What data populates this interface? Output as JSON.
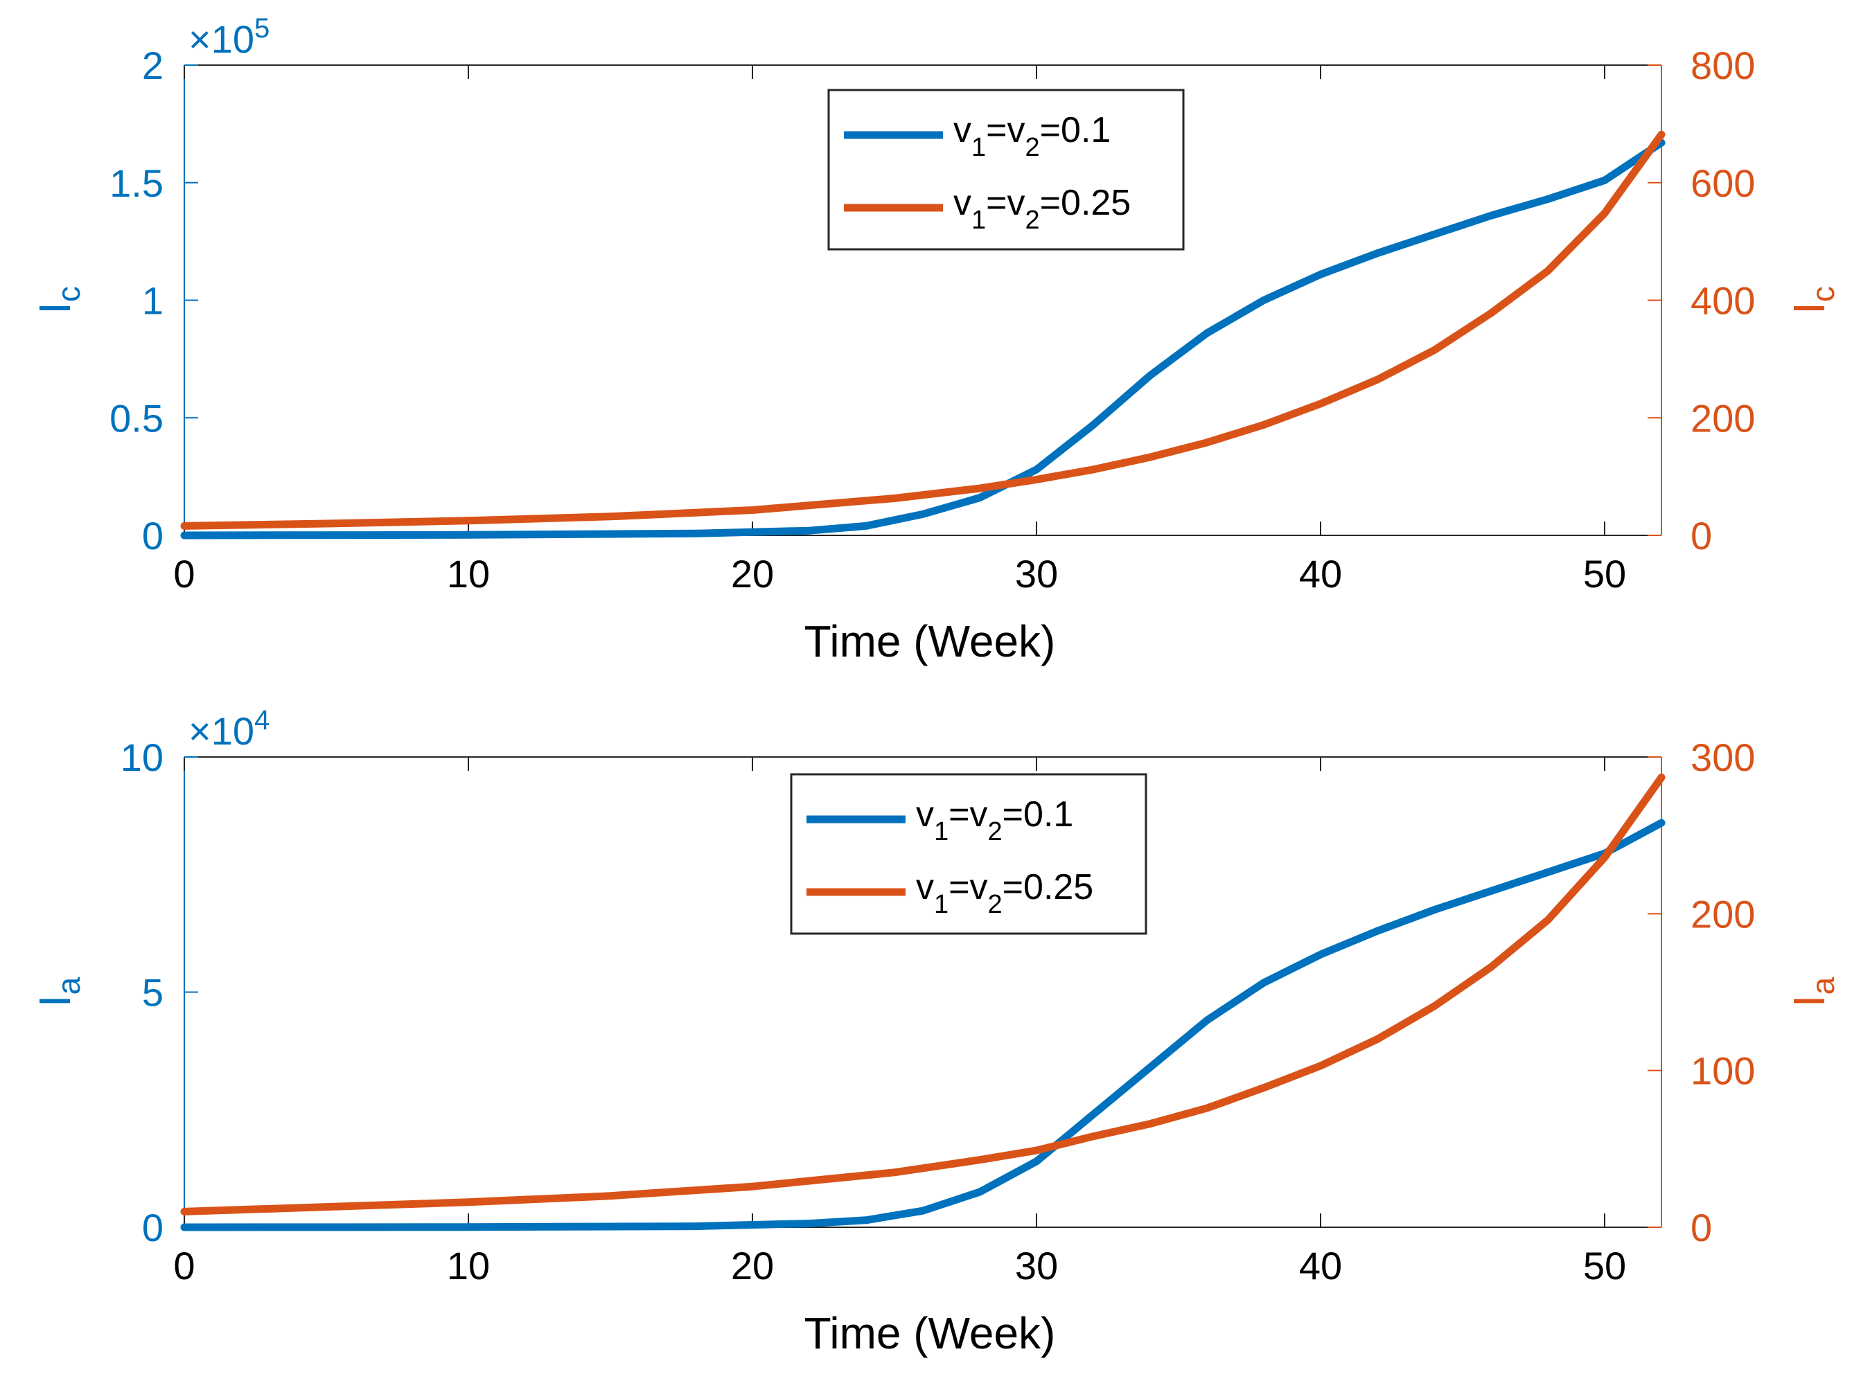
{
  "colors": {
    "left_axis": "#0072BD",
    "right_axis": "#D95319",
    "series_1": "#0072BD",
    "series_2": "#D95319",
    "axis_black": "#262626",
    "legend_border": "#262626",
    "background": "#ffffff"
  },
  "chart_data": [
    {
      "type": "line",
      "xlabel": "Time (Week)",
      "ylabel_left": {
        "base": "I",
        "sub": "c"
      },
      "ylabel_right": {
        "base": "I",
        "sub": "c"
      },
      "left_multiplier": {
        "times": "×",
        "base": "10",
        "exp": "5"
      },
      "xlim": [
        0,
        52
      ],
      "ylim_left": [
        0,
        200000
      ],
      "ylim_right": [
        0,
        800
      ],
      "xticks": [
        0,
        10,
        20,
        30,
        40,
        50
      ],
      "xtick_labels": [
        "0",
        "10",
        "20",
        "30",
        "40",
        "50"
      ],
      "yticks_left": [
        0,
        50000,
        100000,
        150000,
        200000
      ],
      "ytick_labels_left": [
        "0",
        "0.5",
        "1",
        "1.5",
        "2"
      ],
      "yticks_right": [
        0,
        200,
        400,
        600,
        800
      ],
      "ytick_labels_right": [
        "0",
        "200",
        "400",
        "600",
        "800"
      ],
      "grid": false,
      "legend_placement": "top-center",
      "legend": [
        {
          "v1": "v",
          "s1": "1",
          "eq1": "=",
          "v2": "v",
          "s2": "2",
          "rest": "=0.1"
        },
        {
          "v1": "v",
          "s1": "1",
          "eq1": "=",
          "v2": "v",
          "s2": "2",
          "rest": "=0.25"
        }
      ],
      "series": [
        {
          "axis": "left",
          "x": [
            0,
            10,
            18,
            22,
            24,
            26,
            28,
            30,
            32,
            34,
            36,
            38,
            40,
            42,
            44,
            46,
            48,
            50,
            52
          ],
          "y": [
            0,
            200,
            800,
            2000,
            4000,
            9000,
            16000,
            28000,
            47000,
            68000,
            86000,
            100000,
            111000,
            120000,
            128000,
            136000,
            143000,
            151000,
            167000
          ]
        },
        {
          "axis": "right",
          "x": [
            0,
            5,
            10,
            15,
            20,
            25,
            28,
            30,
            32,
            34,
            36,
            38,
            40,
            42,
            44,
            46,
            48,
            50,
            52
          ],
          "y": [
            16,
            20,
            25,
            32,
            43,
            63,
            80,
            95,
            112,
            133,
            158,
            188,
            224,
            265,
            315,
            378,
            450,
            548,
            682
          ]
        }
      ]
    },
    {
      "type": "line",
      "xlabel": "Time (Week)",
      "ylabel_left": {
        "base": "I",
        "sub": "a"
      },
      "ylabel_right": {
        "base": "I",
        "sub": "a"
      },
      "left_multiplier": {
        "times": "×",
        "base": "10",
        "exp": "4"
      },
      "xlim": [
        0,
        52
      ],
      "ylim_left": [
        0,
        100000
      ],
      "ylim_right": [
        0,
        300
      ],
      "xticks": [
        0,
        10,
        20,
        30,
        40,
        50
      ],
      "xtick_labels": [
        "0",
        "10",
        "20",
        "30",
        "40",
        "50"
      ],
      "yticks_left": [
        0,
        50000,
        100000
      ],
      "ytick_labels_left": [
        "0",
        "5",
        "10"
      ],
      "yticks_right": [
        0,
        100,
        200,
        300
      ],
      "ytick_labels_right": [
        "0",
        "100",
        "200",
        "300"
      ],
      "grid": false,
      "legend_placement": "top-center",
      "legend": [
        {
          "v1": "v",
          "s1": "1",
          "eq1": "=",
          "v2": "v",
          "s2": "2",
          "rest": "=0.1"
        },
        {
          "v1": "v",
          "s1": "1",
          "eq1": "=",
          "v2": "v",
          "s2": "2",
          "rest": "=0.25"
        }
      ],
      "series": [
        {
          "axis": "left",
          "x": [
            0,
            10,
            18,
            22,
            24,
            26,
            28,
            30,
            32,
            34,
            36,
            38,
            40,
            42,
            44,
            46,
            48,
            50,
            52
          ],
          "y": [
            0,
            50,
            200,
            800,
            1500,
            3500,
            7500,
            14000,
            24000,
            34000,
            44000,
            52000,
            58000,
            63000,
            67500,
            71500,
            75500,
            79500,
            86000
          ]
        },
        {
          "axis": "right",
          "x": [
            0,
            5,
            10,
            15,
            20,
            25,
            28,
            30,
            32,
            34,
            36,
            38,
            40,
            42,
            44,
            46,
            48,
            50,
            52
          ],
          "y": [
            10,
            13,
            16,
            20,
            26,
            35,
            43,
            49,
            58,
            66,
            76,
            89,
            103,
            120,
            141,
            166,
            196,
            236,
            287
          ]
        }
      ]
    }
  ]
}
